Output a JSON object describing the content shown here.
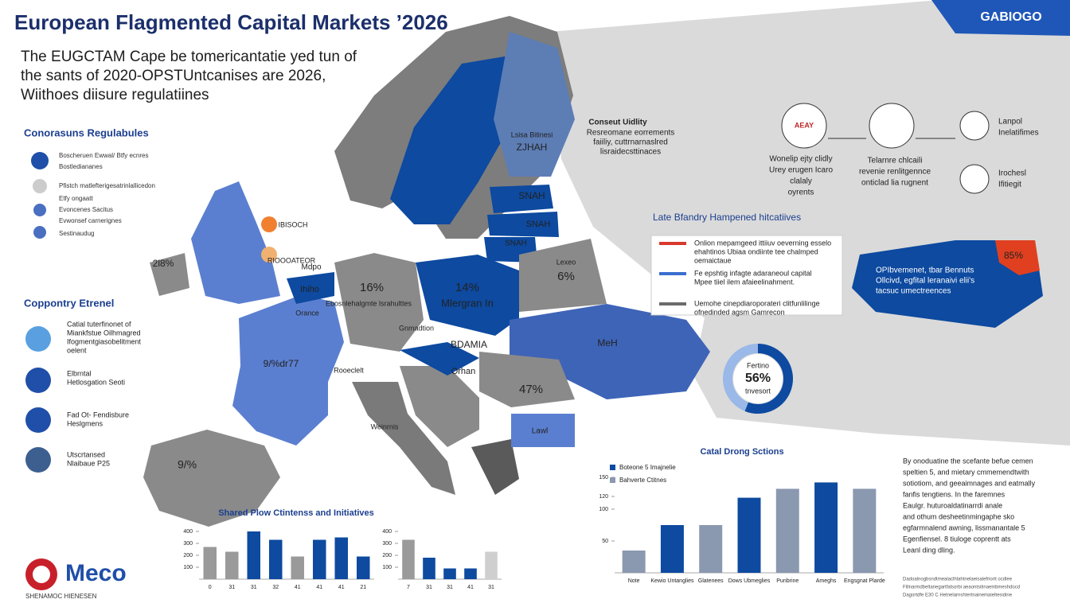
{
  "header": {
    "title": "European Flagmented Capital Markets ’2026",
    "badge": "GABIOGO",
    "subtitle": [
      "The EUGCTAM Cape be tomericantatie yed tun of",
      "the sants of 2020-OPSTUntcanises are 2026,",
      "Wiithoes diisure regulatiines"
    ]
  },
  "regulations": {
    "title": "Conorasuns Regulabules",
    "items": [
      "Boscheruen Ewwal/ Btfy ecnres",
      "Bostlediananes",
      "Pfistch matlefterigesatrinlallicedon",
      "Etfy ongaatt",
      "Evoncenes Sacitus",
      "Evwonsef carnerignes",
      "Sestinaudug"
    ]
  },
  "external": {
    "title": "Coppontry Etrenel",
    "items": [
      [
        "Catial tuterfinonet of",
        "Miankfstue Oilhmagred",
        "Ifogmentgiasobelitment",
        "oelent"
      ],
      [
        "Elbrntal",
        "Hetlosgation Seoti"
      ],
      [
        "Fad Ot- Fendisbure",
        "Heslgmens"
      ],
      [
        "Utscrtansed",
        "Nlaibaue P25"
      ]
    ]
  },
  "map": {
    "labels": [
      "IBISOCH",
      "RIOOOATEOR",
      "16%",
      "Ebosnlehalgmte lsrahulttes",
      "14%",
      "Mlergran In",
      "6%",
      "Lexeo",
      "ZJHAH",
      "Lsisa Bitinesi",
      "SNAH",
      "SNAH",
      "SNAH",
      "Orance",
      "Ihiho",
      "Gnmadtion",
      "9/%dr77",
      "Rooeclelt",
      "BDAMIA",
      "Orhan",
      "MeH",
      "47%",
      "Lawl",
      "Weinrnis",
      "9/%",
      "2l8%",
      "Mdpo",
      "85%"
    ]
  },
  "flow": {
    "title": "Conseut Uidlity",
    "note": [
      "Resreomane eorrements",
      "faiiliy, cuttrnarnaslred",
      "lisraidecsttinaces"
    ],
    "steps": [
      {
        "icon": "AEAY",
        "label": [
          "Wonelip ejty clidly",
          "Urey erugen Icaro",
          "clalaly",
          "oyrents"
        ]
      },
      {
        "label": [
          "Telarnre chlcaili",
          "revenie renlitgennce",
          "onticlad lia rugnent"
        ]
      },
      {
        "label": [
          "Lanpol",
          "Inelatifimes"
        ]
      },
      {
        "label": [
          "Irochesl",
          "Ifitiegit"
        ]
      }
    ]
  },
  "initiatives": {
    "title": "Late Bfandry Hampened hitcatiives",
    "items": [
      {
        "text": [
          "Onlion mepamgeed ittiiuv oeverning esselo",
          "ehahtinos Ubiaa ondiinte tee chalmped",
          "oemaictaue"
        ],
        "color": "#d9382c"
      },
      {
        "text": [
          "Fe epshtig infagte adaraneoul capital",
          "Mpee tiiel ilem afaieelinahment."
        ],
        "color": "#3b6fd0"
      },
      {
        "text": [
          "Uemohe cinepdiaroporateri clitfunlilinge",
          "ofnedinded agsm Gamrecon"
        ],
        "color": "#6b6b6b"
      }
    ]
  },
  "region": {
    "text": [
      "OPIbvemenet, tbar Bennuts",
      "Ollcivd, egfital leranaivi elii's",
      "tacsuc umectreences"
    ]
  },
  "donut": {
    "type": "donut",
    "value": 56,
    "value_label": "56%",
    "label": "Fertino",
    "caption": "tnvesort",
    "color": "#0d4aa0"
  },
  "charts": [
    {
      "type": "bar",
      "title": "Shared Plow Ctintenss and Initiatives",
      "categories": [
        "0",
        "31",
        "31",
        "32",
        "41",
        "41",
        "41",
        "21"
      ],
      "values": [
        270,
        230,
        400,
        330,
        190,
        330,
        350,
        190
      ],
      "colors": [
        "#9a9a9a",
        "#9a9a9a",
        "#0d4aa0",
        "#0d4aa0",
        "#9a9a9a",
        "#0d4aa0",
        "#0d4aa0",
        "#0d4aa0"
      ],
      "ylim": [
        0,
        400
      ],
      "yticks": [
        100,
        200,
        300,
        400
      ]
    },
    {
      "type": "bar",
      "categories": [
        "7",
        "31",
        "31",
        "41",
        "31"
      ],
      "values": [
        330,
        180,
        90,
        90,
        230
      ],
      "colors": [
        "#9a9a9a",
        "#0d4aa0",
        "#0d4aa0",
        "#0d4aa0",
        "#cfcfcf"
      ],
      "ylim": [
        0,
        400
      ],
      "yticks": [
        100,
        200,
        300,
        400
      ]
    },
    {
      "type": "bar",
      "title": "Catal Drong Sctions",
      "categories": [
        "Note",
        "Kewio Untanglies",
        "Glatenees",
        "Dows Ubmeglies",
        "Punbrine",
        "Ameghs",
        "Engsgnat Plarde"
      ],
      "values": [
        35,
        75,
        75,
        118,
        132,
        142,
        132
      ],
      "colors": [
        "#8a98b0",
        "#0d4aa0",
        "#8a98b0",
        "#0d4aa0",
        "#8a98b0",
        "#0d4aa0",
        "#8a98b0"
      ],
      "ylim": [
        0,
        150
      ],
      "yticks": [
        50,
        100,
        120,
        150
      ],
      "legend": [
        {
          "name": "Boteone 5 Imajnelie",
          "color": "#0d4aa0"
        },
        {
          "name": "Bahverte Ctitnes",
          "color": "#8a98b0"
        }
      ]
    }
  ],
  "notes": {
    "paragraph": [
      "By onoduatine the scefante befue cemen",
      "speltien 5, and mietary cmmemendtwith",
      "sotiotiom, and geeaimnages and eatmally",
      "fanfis tengtiens. In the faremnes",
      "Eaulgr. huturoaldatinarrdi anale",
      "and othum desheetinmingaphe sko",
      "egfarmnalend awning, lissmanantale 5",
      "Egenfiensel. 8 tiuloge coprentt ats",
      "Leanl ding dling."
    ],
    "footer": [
      "Dadoalnogbsndtmealaclhlahtnelaeisalefriorit ocdlee",
      "Fillnarmdbeltanegartfalsorbi aeaontsitinaeinbmeshdocd",
      "Dagortdfe E30 C Hetnelarnshtertnainemaieltesidine"
    ]
  },
  "logo": {
    "name": "Meco",
    "tagline": "SHENAMOC HIENESEN"
  }
}
